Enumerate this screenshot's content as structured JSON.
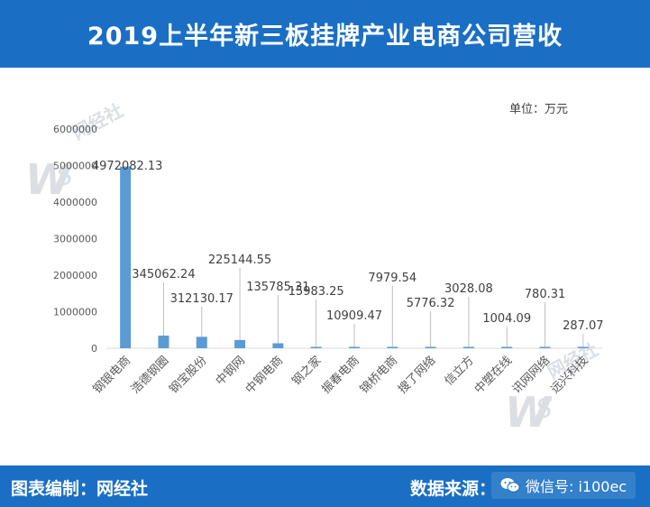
{
  "header": {
    "title": "2019上半年新三板挂牌产业电商公司营收"
  },
  "unit_label": "单位：万元",
  "footer": {
    "compiled_by": "图表编制：网经社",
    "source_label": "数据来源：",
    "wechat": "微信号: i100ec"
  },
  "watermark": {
    "brand": "网经社"
  },
  "colors": {
    "header_bg": "#1a6fc4",
    "bar": "#5b9bd5",
    "axis_text": "#595959"
  },
  "chart_data": {
    "type": "bar",
    "title": "2019上半年新三板挂牌产业电商公司营收",
    "xlabel": "",
    "ylabel": "",
    "unit": "万元",
    "categories": [
      "钢银电商",
      "浩德钢圈",
      "钢宝股份",
      "中钢网",
      "中钢电商",
      "钢之家",
      "振春电商",
      "锦桥电商",
      "搜了网络",
      "信立方",
      "中塑在线",
      "讯网网络",
      "远兴科技"
    ],
    "values": [
      4972082.13,
      345062.24,
      312130.17,
      225144.55,
      135785.31,
      15983.25,
      10909.47,
      7979.54,
      5776.32,
      3028.08,
      1004.09,
      780.31,
      287.07
    ],
    "value_labels": [
      "4972082.13",
      "345062.24",
      "312130.17",
      "225144.55",
      "135785.31",
      "15983.25",
      "10909.47",
      "7979.54",
      "5776.32",
      "3028.08",
      "1004.09",
      "780.31",
      "287.07"
    ],
    "ylim": [
      0,
      6000000
    ],
    "yticks": [
      "0",
      "1000000",
      "2000000",
      "3000000",
      "4000000",
      "5000000",
      "6000000"
    ],
    "grid": false,
    "legend": "none"
  }
}
